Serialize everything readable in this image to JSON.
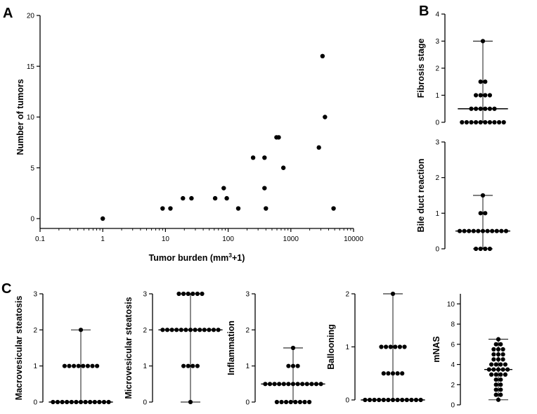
{
  "chart_data": [
    {
      "id": "A",
      "type": "scatter",
      "panel_label": "A",
      "xscale": "log",
      "xlabel_main": "Tumor burden (mm",
      "xlabel_sup": "3",
      "xlabel_end": "+1)",
      "ylabel": "Number of tumors",
      "xticks": [
        {
          "v": 0.1,
          "label": "0.1"
        },
        {
          "v": 1,
          "label": "1"
        },
        {
          "v": 10,
          "label": "10"
        },
        {
          "v": 100,
          "label": "100"
        },
        {
          "v": 1000,
          "label": "1000"
        },
        {
          "v": 10000,
          "label": "10000"
        }
      ],
      "yticks": [
        {
          "v": 0,
          "label": "0"
        },
        {
          "v": 5,
          "label": "5"
        },
        {
          "v": 10,
          "label": "10"
        },
        {
          "v": 15,
          "label": "15"
        },
        {
          "v": 20,
          "label": "20"
        }
      ],
      "xlim": [
        0.1,
        10000
      ],
      "ylim": [
        0,
        20
      ],
      "points": [
        {
          "x": 1,
          "y": 0
        },
        {
          "x": 9,
          "y": 1
        },
        {
          "x": 12,
          "y": 1
        },
        {
          "x": 19,
          "y": 2
        },
        {
          "x": 26,
          "y": 2
        },
        {
          "x": 62,
          "y": 2
        },
        {
          "x": 85,
          "y": 3
        },
        {
          "x": 95,
          "y": 2
        },
        {
          "x": 145,
          "y": 1
        },
        {
          "x": 250,
          "y": 6
        },
        {
          "x": 380,
          "y": 6
        },
        {
          "x": 380,
          "y": 3
        },
        {
          "x": 400,
          "y": 1
        },
        {
          "x": 590,
          "y": 8
        },
        {
          "x": 640,
          "y": 8
        },
        {
          "x": 760,
          "y": 5
        },
        {
          "x": 2800,
          "y": 7
        },
        {
          "x": 3200,
          "y": 16
        },
        {
          "x": 3500,
          "y": 10
        },
        {
          "x": 4800,
          "y": 1
        }
      ]
    },
    {
      "id": "B1",
      "type": "dot-plot",
      "panel_label": "B",
      "ylabel": "Fibrosis stage",
      "ylim": [
        0,
        4
      ],
      "yticks": [
        {
          "v": 0,
          "label": "0"
        },
        {
          "v": 1,
          "label": "1"
        },
        {
          "v": 2,
          "label": "2"
        },
        {
          "v": 3,
          "label": "3"
        },
        {
          "v": 4,
          "label": "4"
        }
      ],
      "median": 0.5,
      "min": 0,
      "max": 3,
      "groups": [
        {
          "v": 0,
          "n": 10
        },
        {
          "v": 0.5,
          "n": 6
        },
        {
          "v": 1,
          "n": 4
        },
        {
          "v": 1.5,
          "n": 2
        },
        {
          "v": 3,
          "n": 1
        }
      ]
    },
    {
      "id": "B2",
      "type": "dot-plot",
      "panel_label": "",
      "ylabel": "Bile duct reaction",
      "ylim": [
        0,
        3
      ],
      "yticks": [
        {
          "v": 0,
          "label": "0"
        },
        {
          "v": 1,
          "label": "1"
        },
        {
          "v": 2,
          "label": "2"
        },
        {
          "v": 3,
          "label": "3"
        }
      ],
      "median": 0.5,
      "min": 0,
      "max": 1.5,
      "groups": [
        {
          "v": 0,
          "n": 4
        },
        {
          "v": 0.5,
          "n": 11
        },
        {
          "v": 1,
          "n": 2
        },
        {
          "v": 1.5,
          "n": 1
        }
      ]
    },
    {
      "id": "C1",
      "type": "dot-plot",
      "panel_label": "C",
      "ylabel": "Macrovesicular steatosis",
      "ylim": [
        0,
        3
      ],
      "yticks": [
        {
          "v": 0,
          "label": "0"
        },
        {
          "v": 1,
          "label": "1"
        },
        {
          "v": 2,
          "label": "2"
        },
        {
          "v": 3,
          "label": "3"
        }
      ],
      "median": 0,
      "min": 0,
      "max": 2,
      "groups": [
        {
          "v": 0,
          "n": 13
        },
        {
          "v": 1,
          "n": 8
        },
        {
          "v": 2,
          "n": 1
        }
      ]
    },
    {
      "id": "C2",
      "type": "dot-plot",
      "panel_label": "",
      "ylabel": "Microvesicular steatosis",
      "ylim": [
        0,
        3
      ],
      "yticks": [
        {
          "v": 0,
          "label": "0"
        },
        {
          "v": 1,
          "label": "1"
        },
        {
          "v": 2,
          "label": "2"
        },
        {
          "v": 3,
          "label": "3"
        }
      ],
      "median": 2,
      "min": 0,
      "max": 3,
      "groups": [
        {
          "v": 0,
          "n": 1
        },
        {
          "v": 1,
          "n": 4
        },
        {
          "v": 2,
          "n": 13
        },
        {
          "v": 3,
          "n": 6
        }
      ]
    },
    {
      "id": "C3",
      "type": "dot-plot",
      "panel_label": "",
      "ylabel": "Inflammation",
      "ylim": [
        0,
        3
      ],
      "yticks": [
        {
          "v": 0,
          "label": "0"
        },
        {
          "v": 1,
          "label": "1"
        },
        {
          "v": 2,
          "label": "2"
        },
        {
          "v": 3,
          "label": "3"
        }
      ],
      "median": 0.5,
      "min": 0,
      "max": 1.5,
      "groups": [
        {
          "v": 0,
          "n": 8
        },
        {
          "v": 0.5,
          "n": 13
        },
        {
          "v": 1,
          "n": 3
        },
        {
          "v": 1.5,
          "n": 1
        }
      ]
    },
    {
      "id": "C4",
      "type": "dot-plot",
      "panel_label": "",
      "ylabel": "Ballooning",
      "ylim": [
        0,
        2
      ],
      "yticks": [
        {
          "v": 0,
          "label": "0"
        },
        {
          "v": 1,
          "label": "1"
        },
        {
          "v": 2,
          "label": "2"
        }
      ],
      "median": 0,
      "min": 0,
      "max": 2,
      "groups": [
        {
          "v": 0,
          "n": 13
        },
        {
          "v": 0.5,
          "n": 5
        },
        {
          "v": 1,
          "n": 6
        },
        {
          "v": 2,
          "n": 1
        }
      ]
    },
    {
      "id": "C5",
      "type": "dot-plot",
      "panel_label": "",
      "ylabel": "mNAS",
      "ylim": [
        0,
        11
      ],
      "yticks": [
        {
          "v": 0,
          "label": "0"
        },
        {
          "v": 2,
          "label": "2"
        },
        {
          "v": 4,
          "label": "4"
        },
        {
          "v": 6,
          "label": "6"
        },
        {
          "v": 8,
          "label": "8"
        },
        {
          "v": 10,
          "label": "10"
        }
      ],
      "median": 3.5,
      "min": 0.5,
      "max": 6.5,
      "groups": [
        {
          "v": 0.5,
          "n": 1
        },
        {
          "v": 1,
          "n": 2
        },
        {
          "v": 1.5,
          "n": 2
        },
        {
          "v": 2,
          "n": 2
        },
        {
          "v": 2.5,
          "n": 2
        },
        {
          "v": 3,
          "n": 4
        },
        {
          "v": 3.5,
          "n": 5
        },
        {
          "v": 4,
          "n": 4
        },
        {
          "v": 4.5,
          "n": 3
        },
        {
          "v": 5,
          "n": 3
        },
        {
          "v": 5.5,
          "n": 3
        },
        {
          "v": 6,
          "n": 2
        },
        {
          "v": 6.5,
          "n": 1
        }
      ]
    }
  ]
}
